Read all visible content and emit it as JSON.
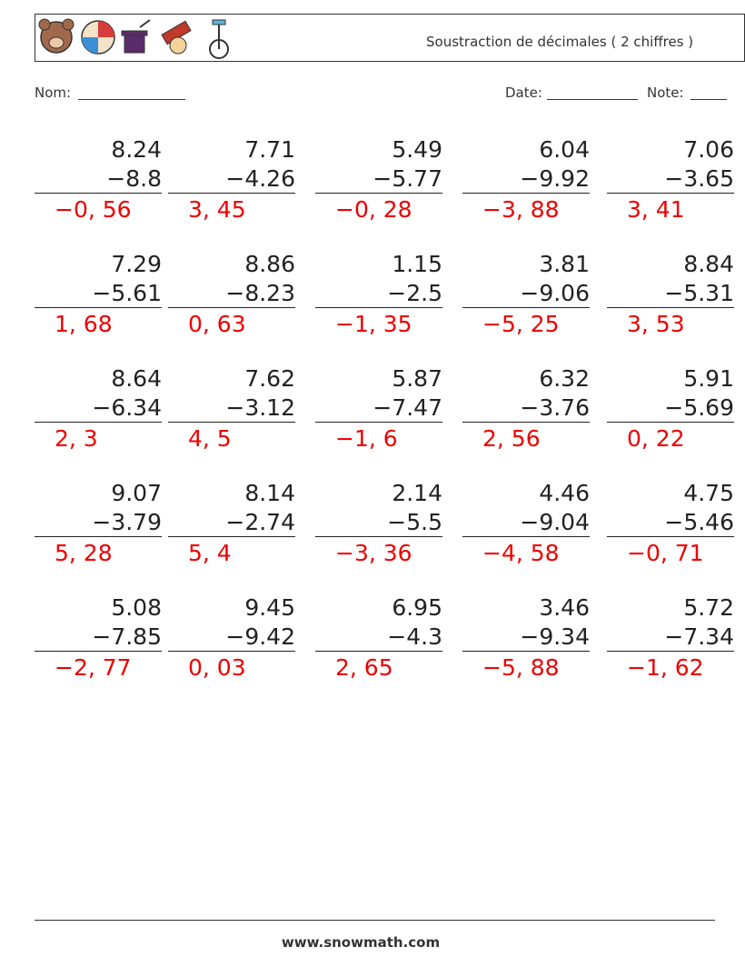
{
  "header": {
    "title": "Soustraction de décimales ( 2 chiffres )"
  },
  "fields": {
    "name": "Nom:",
    "date": "Date:",
    "note": "Note:"
  },
  "problems": {
    "rows": [
      [
        {
          "top": "8.24",
          "bottom": "−8.8",
          "answer": "−0, 56"
        },
        {
          "top": "7.71",
          "bottom": "−4.26",
          "answer": "3, 45"
        },
        {
          "top": "5.49",
          "bottom": "−5.77",
          "answer": "−0, 28"
        },
        {
          "top": "6.04",
          "bottom": "−9.92",
          "answer": "−3, 88"
        },
        {
          "top": "7.06",
          "bottom": "−3.65",
          "answer": "3, 41"
        }
      ],
      [
        {
          "top": "7.29",
          "bottom": "−5.61",
          "answer": "1, 68"
        },
        {
          "top": "8.86",
          "bottom": "−8.23",
          "answer": "0, 63"
        },
        {
          "top": "1.15",
          "bottom": "−2.5",
          "answer": "−1, 35"
        },
        {
          "top": "3.81",
          "bottom": "−9.06",
          "answer": "−5, 25"
        },
        {
          "top": "8.84",
          "bottom": "−5.31",
          "answer": "3, 53"
        }
      ],
      [
        {
          "top": "8.64",
          "bottom": "−6.34",
          "answer": "2, 3"
        },
        {
          "top": "7.62",
          "bottom": "−3.12",
          "answer": "4, 5"
        },
        {
          "top": "5.87",
          "bottom": "−7.47",
          "answer": "−1, 6"
        },
        {
          "top": "6.32",
          "bottom": "−3.76",
          "answer": "2, 56"
        },
        {
          "top": "5.91",
          "bottom": "−5.69",
          "answer": "0, 22"
        }
      ],
      [
        {
          "top": "9.07",
          "bottom": "−3.79",
          "answer": "5, 28"
        },
        {
          "top": "8.14",
          "bottom": "−2.74",
          "answer": "5, 4"
        },
        {
          "top": "2.14",
          "bottom": "−5.5",
          "answer": "−3, 36"
        },
        {
          "top": "4.46",
          "bottom": "−9.04",
          "answer": "−4, 58"
        },
        {
          "top": "4.75",
          "bottom": "−5.46",
          "answer": "−0, 71"
        }
      ],
      [
        {
          "top": "5.08",
          "bottom": "−7.85",
          "answer": "−2, 77"
        },
        {
          "top": "9.45",
          "bottom": "−9.42",
          "answer": "0, 03"
        },
        {
          "top": "6.95",
          "bottom": "−4.3",
          "answer": "2, 65"
        },
        {
          "top": "3.46",
          "bottom": "−9.34",
          "answer": "−5, 88"
        },
        {
          "top": "5.72",
          "bottom": "−7.34",
          "answer": "−1, 62"
        }
      ]
    ]
  },
  "footer": {
    "site": "www.snowmath.com"
  }
}
